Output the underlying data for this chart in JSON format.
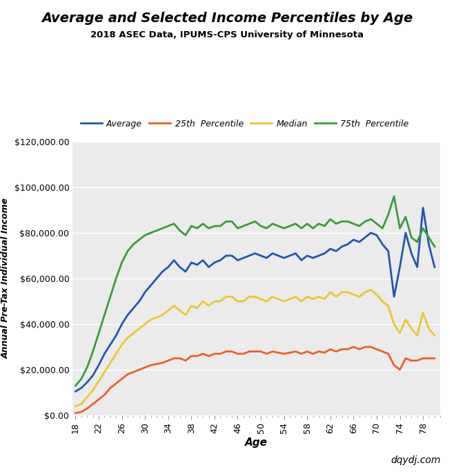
{
  "title": "Average and Selected Income Percentiles by Age",
  "subtitle": "2018 ASEC Data, IPUMS-CPS University of Minnesota",
  "xlabel": "Age",
  "ylabel": "Annual Pre-Tax Individual Income",
  "watermark": "dqydj.com",
  "legend": [
    "Average",
    "25th  Percentile",
    "Median",
    "75th  Percentile"
  ],
  "colors": [
    "#2255aa",
    "#e8602c",
    "#e8c830",
    "#3a9a3a"
  ],
  "ages": [
    18,
    19,
    20,
    21,
    22,
    23,
    24,
    25,
    26,
    27,
    28,
    29,
    30,
    31,
    32,
    33,
    34,
    35,
    36,
    37,
    38,
    39,
    40,
    41,
    42,
    43,
    44,
    45,
    46,
    47,
    48,
    49,
    50,
    51,
    52,
    53,
    54,
    55,
    56,
    57,
    58,
    59,
    60,
    61,
    62,
    63,
    64,
    65,
    66,
    67,
    68,
    69,
    70,
    71,
    72,
    73,
    74,
    75,
    76,
    77,
    78,
    79,
    80
  ],
  "average": [
    10500,
    12000,
    14500,
    17500,
    22000,
    27000,
    31000,
    35000,
    40000,
    44000,
    47000,
    50000,
    54000,
    57000,
    60000,
    63000,
    65000,
    68000,
    65000,
    63000,
    67000,
    66000,
    68000,
    65000,
    67000,
    68000,
    70000,
    70000,
    68000,
    69000,
    70000,
    71000,
    70000,
    69000,
    71000,
    70000,
    69000,
    70000,
    71000,
    68000,
    70000,
    69000,
    70000,
    71000,
    73000,
    72000,
    74000,
    75000,
    77000,
    76000,
    78000,
    80000,
    79000,
    75000,
    72000,
    52000,
    65000,
    80000,
    71000,
    65000,
    91000,
    75000,
    65000
  ],
  "p25": [
    1000,
    1500,
    3000,
    5000,
    7000,
    9000,
    12000,
    14000,
    16000,
    18000,
    19000,
    20000,
    21000,
    22000,
    22500,
    23000,
    24000,
    25000,
    25000,
    24000,
    26000,
    26000,
    27000,
    26000,
    27000,
    27000,
    28000,
    28000,
    27000,
    27000,
    28000,
    28000,
    28000,
    27000,
    28000,
    27500,
    27000,
    27500,
    28000,
    27000,
    28000,
    27000,
    28000,
    27500,
    29000,
    28000,
    29000,
    29000,
    30000,
    29000,
    30000,
    30000,
    29000,
    28000,
    27000,
    22000,
    20000,
    25000,
    24000,
    24000,
    25000,
    25000,
    25000
  ],
  "median": [
    4000,
    5000,
    8000,
    11000,
    15000,
    19000,
    23000,
    27000,
    31000,
    34000,
    36000,
    38000,
    40000,
    42000,
    43000,
    44000,
    46000,
    48000,
    46000,
    44000,
    48000,
    47000,
    50000,
    48000,
    50000,
    50000,
    52000,
    52000,
    50000,
    50000,
    52000,
    52000,
    51000,
    50000,
    52000,
    51000,
    50000,
    51000,
    52000,
    50000,
    52000,
    51000,
    52000,
    51000,
    54000,
    52000,
    54000,
    54000,
    53000,
    52000,
    54000,
    55000,
    53000,
    50000,
    48000,
    40000,
    36000,
    42000,
    38000,
    35000,
    45000,
    38000,
    35000
  ],
  "p75": [
    13000,
    16000,
    21000,
    28000,
    36000,
    44000,
    52000,
    60000,
    67000,
    72000,
    75000,
    77000,
    79000,
    80000,
    81000,
    82000,
    83000,
    84000,
    81000,
    79000,
    83000,
    82000,
    84000,
    82000,
    83000,
    83000,
    85000,
    85000,
    82000,
    83000,
    84000,
    85000,
    83000,
    82000,
    84000,
    83000,
    82000,
    83000,
    84000,
    82000,
    84000,
    82000,
    84000,
    83000,
    86000,
    84000,
    85000,
    85000,
    84000,
    83000,
    85000,
    86000,
    84000,
    82000,
    88000,
    96000,
    82000,
    87000,
    78000,
    76000,
    82000,
    78000,
    74000
  ],
  "ylim": [
    0,
    120000
  ],
  "yticks": [
    0,
    20000,
    40000,
    60000,
    80000,
    100000,
    120000
  ],
  "xticks": [
    18,
    22,
    26,
    30,
    34,
    38,
    42,
    46,
    50,
    54,
    58,
    62,
    66,
    70,
    74,
    78
  ],
  "bg_color": "#ebebeb",
  "fig_color": "#ffffff"
}
